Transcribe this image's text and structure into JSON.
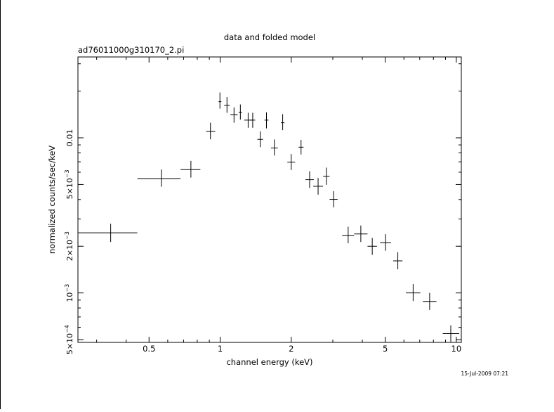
{
  "chart_data": {
    "type": "scatter",
    "title": "data and folded model",
    "subtitle": "ad76011000g310170_2.pi",
    "xlabel": "channel energy (keV)",
    "ylabel": "normalized counts/sec/keV",
    "x_scale": "log",
    "y_scale": "log",
    "xlim": [
      0.25,
      10.5
    ],
    "ylim": [
      0.00048,
      0.0332
    ],
    "x_ticks": [
      {
        "value": 0.5,
        "label": "0.5"
      },
      {
        "value": 1,
        "label": "1"
      },
      {
        "value": 2,
        "label": "2"
      },
      {
        "value": 5,
        "label": "5"
      },
      {
        "value": 10,
        "label": "10"
      }
    ],
    "y_ticks": [
      {
        "value": 0.0005,
        "mantissa": "5×10",
        "exp": "−4"
      },
      {
        "value": 0.001,
        "mantissa": "10",
        "exp": "−3"
      },
      {
        "value": 0.002,
        "mantissa": "2×10",
        "exp": "−3"
      },
      {
        "value": 0.005,
        "mantissa": "5×10",
        "exp": "−3"
      },
      {
        "value": 0.01,
        "mantissa": "0.01",
        "exp": ""
      }
    ],
    "grid": false,
    "legend": "none",
    "points": [
      {
        "x": 0.344,
        "xlo": 0.25,
        "xhi": 0.446,
        "y": 0.00244,
        "ylo": 0.00213,
        "yhi": 0.00279
      },
      {
        "x": 0.564,
        "xlo": 0.446,
        "xhi": 0.68,
        "y": 0.00546,
        "ylo": 0.00484,
        "yhi": 0.00625
      },
      {
        "x": 0.752,
        "xlo": 0.68,
        "xhi": 0.825,
        "y": 0.00624,
        "ylo": 0.00554,
        "yhi": 0.0071
      },
      {
        "x": 0.91,
        "xlo": 0.872,
        "xhi": 0.953,
        "y": 0.011,
        "ylo": 0.00978,
        "yhi": 0.0125
      },
      {
        "x": 0.998,
        "xlo": 0.985,
        "xhi": 1.012,
        "y": 0.0171,
        "ylo": 0.0154,
        "yhi": 0.0196
      },
      {
        "x": 1.069,
        "xlo": 1.04,
        "xhi": 1.099,
        "y": 0.0162,
        "ylo": 0.0145,
        "yhi": 0.0183
      },
      {
        "x": 1.145,
        "xlo": 1.105,
        "xhi": 1.187,
        "y": 0.0141,
        "ylo": 0.0125,
        "yhi": 0.0157
      },
      {
        "x": 1.218,
        "xlo": 1.198,
        "xhi": 1.239,
        "y": 0.0146,
        "ylo": 0.0131,
        "yhi": 0.0164
      },
      {
        "x": 1.314,
        "xlo": 1.265,
        "xhi": 1.365,
        "y": 0.013,
        "ylo": 0.0116,
        "yhi": 0.0145
      },
      {
        "x": 1.374,
        "xlo": 1.341,
        "xhi": 1.408,
        "y": 0.013,
        "ylo": 0.0116,
        "yhi": 0.0145
      },
      {
        "x": 1.478,
        "xlo": 1.438,
        "xhi": 1.519,
        "y": 0.00977,
        "ylo": 0.00871,
        "yhi": 0.011
      },
      {
        "x": 1.571,
        "xlo": 1.541,
        "xhi": 1.603,
        "y": 0.013,
        "ylo": 0.0115,
        "yhi": 0.0146
      },
      {
        "x": 1.697,
        "xlo": 1.641,
        "xhi": 1.755,
        "y": 0.0086,
        "ylo": 0.00768,
        "yhi": 0.00975
      },
      {
        "x": 1.84,
        "xlo": 1.808,
        "xhi": 1.873,
        "y": 0.0125,
        "ylo": 0.0112,
        "yhi": 0.0142
      },
      {
        "x": 2.0,
        "xlo": 1.925,
        "xhi": 2.078,
        "y": 0.00697,
        "ylo": 0.0062,
        "yhi": 0.00785
      },
      {
        "x": 2.201,
        "xlo": 2.149,
        "xhi": 2.256,
        "y": 0.0087,
        "ylo": 0.00781,
        "yhi": 0.0097
      },
      {
        "x": 2.393,
        "xlo": 2.296,
        "xhi": 2.493,
        "y": 0.00537,
        "ylo": 0.00475,
        "yhi": 0.00609
      },
      {
        "x": 2.599,
        "xlo": 2.478,
        "xhi": 2.727,
        "y": 0.00487,
        "ylo": 0.0043,
        "yhi": 0.00551
      },
      {
        "x": 2.818,
        "xlo": 2.73,
        "xhi": 2.909,
        "y": 0.00565,
        "ylo": 0.00498,
        "yhi": 0.00642
      },
      {
        "x": 3.023,
        "xlo": 2.907,
        "xhi": 3.144,
        "y": 0.00401,
        "ylo": 0.00356,
        "yhi": 0.00453
      },
      {
        "x": 3.484,
        "xlo": 3.286,
        "xhi": 3.693,
        "y": 0.00235,
        "ylo": 0.00209,
        "yhi": 0.00267
      },
      {
        "x": 3.942,
        "xlo": 3.693,
        "xhi": 4.208,
        "y": 0.0024,
        "ylo": 0.00213,
        "yhi": 0.00272
      },
      {
        "x": 4.406,
        "xlo": 4.208,
        "xhi": 4.614,
        "y": 0.002,
        "ylo": 0.00176,
        "yhi": 0.00226
      },
      {
        "x": 5.016,
        "xlo": 4.754,
        "xhi": 5.292,
        "y": 0.00211,
        "ylo": 0.00187,
        "yhi": 0.00239
      },
      {
        "x": 5.654,
        "xlo": 5.403,
        "xhi": 5.917,
        "y": 0.00161,
        "ylo": 0.00142,
        "yhi": 0.00183
      },
      {
        "x": 6.564,
        "xlo": 6.118,
        "xhi": 7.042,
        "y": 0.001,
        "ylo": 0.000887,
        "yhi": 0.00114
      },
      {
        "x": 7.711,
        "xlo": 7.216,
        "xhi": 8.24,
        "y": 0.000882,
        "ylo": 0.000777,
        "yhi": 0.001
      },
      {
        "x": 9.475,
        "xlo": 8.761,
        "xhi": 10.28,
        "y": 0.000547,
        "ylo": 0.000484,
        "yhi": 0.000618
      }
    ]
  },
  "footer": {
    "timestamp": "15-Jul-2009 07:21"
  }
}
